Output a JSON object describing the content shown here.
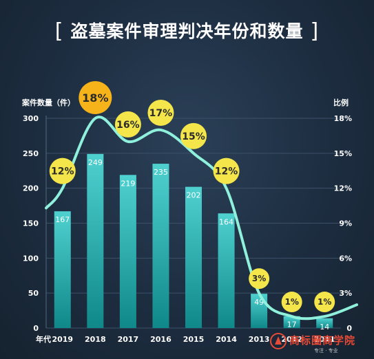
{
  "title": "盗墓案件审理判决年份和数量",
  "title_brackets": [
    "[",
    "]"
  ],
  "chart_data": {
    "type": "bar",
    "title": "盗墓案件审理判决年份和数量",
    "xlabel": "年代",
    "ylabel": "案件数量（件）",
    "y2label": "比例",
    "categories": [
      "2019",
      "2018",
      "2017",
      "2016",
      "2015",
      "2014",
      "2013",
      "2012",
      "2011"
    ],
    "values": [
      167,
      249,
      219,
      235,
      202,
      164,
      49,
      17,
      14
    ],
    "ratio_labels": [
      "12%",
      "18%",
      "16%",
      "17%",
      "15%",
      "12%",
      "3%",
      "1%",
      "1%"
    ],
    "ratios": [
      12,
      18,
      16,
      17,
      15,
      12,
      3,
      1,
      1
    ],
    "ylim": [
      0,
      300
    ],
    "yticks": [
      "0",
      "50",
      "100",
      "150",
      "200",
      "250",
      "300"
    ],
    "y2lim": [
      0,
      18
    ],
    "y2ticks": [
      "0",
      "3%",
      "6%",
      "9%",
      "12%",
      "15%",
      "18%"
    ],
    "colors": {
      "bar_top": "#4fd1d0",
      "bar_bottom": "#10888a",
      "line": "#8ff0dc",
      "bubble": "#f4e64a",
      "bubble_big": "#f6b31a",
      "text": "#ffffff"
    }
  },
  "watermark": {
    "text": "商标圈商学院",
    "sub": "专注 · 专业"
  }
}
